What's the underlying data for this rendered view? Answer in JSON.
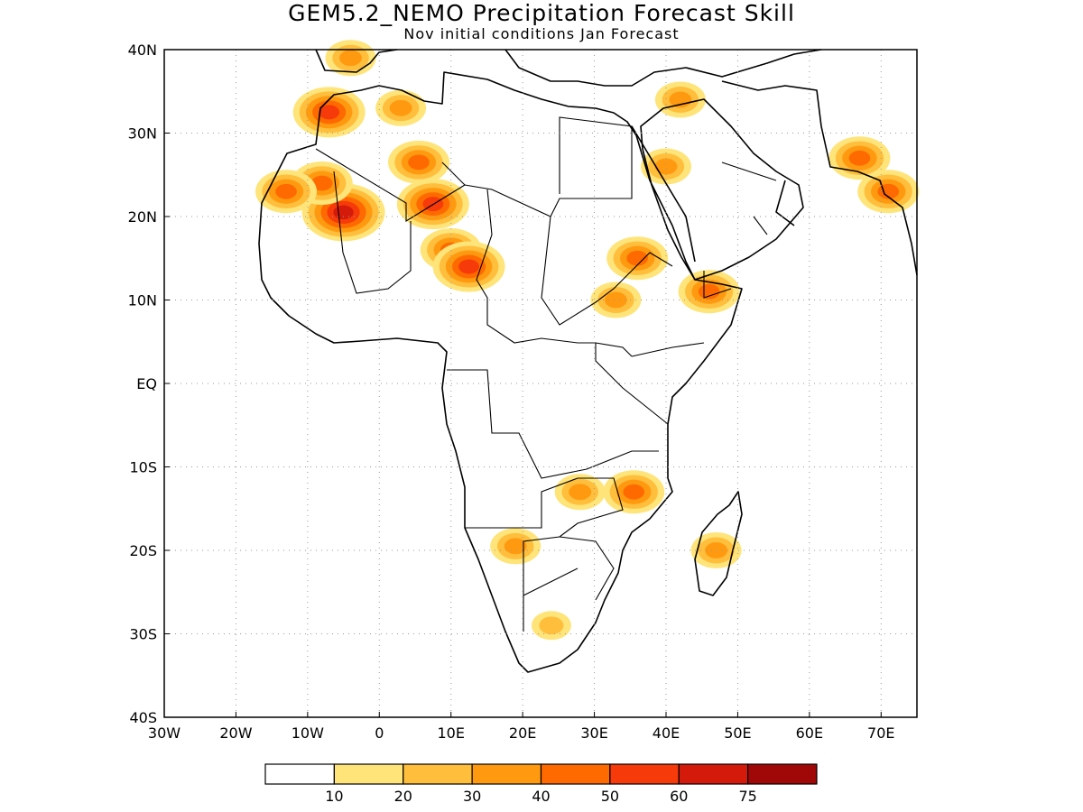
{
  "figure": {
    "title": "GEM5.2_NEMO Precipitation Forecast Skill",
    "subtitle": "Nov initial conditions  Jan Forecast"
  },
  "map": {
    "lon_range": [
      -30,
      75
    ],
    "lat_range": [
      -40,
      40
    ],
    "lat_ticks": [
      {
        "value": 40,
        "label": "40N"
      },
      {
        "value": 30,
        "label": "30N"
      },
      {
        "value": 20,
        "label": "20N"
      },
      {
        "value": 10,
        "label": "10N"
      },
      {
        "value": 0,
        "label": "EQ"
      },
      {
        "value": -10,
        "label": "10S"
      },
      {
        "value": -20,
        "label": "20S"
      },
      {
        "value": -30,
        "label": "30S"
      },
      {
        "value": -40,
        "label": "40S"
      }
    ],
    "lon_ticks": [
      {
        "value": -30,
        "label": "30W"
      },
      {
        "value": -20,
        "label": "20W"
      },
      {
        "value": -10,
        "label": "10W"
      },
      {
        "value": 0,
        "label": "0"
      },
      {
        "value": 10,
        "label": "10E"
      },
      {
        "value": 20,
        "label": "20E"
      },
      {
        "value": 30,
        "label": "30E"
      },
      {
        "value": 40,
        "label": "40E"
      },
      {
        "value": 50,
        "label": "50E"
      },
      {
        "value": 60,
        "label": "60E"
      },
      {
        "value": 70,
        "label": "70E"
      }
    ],
    "grid": true
  },
  "colorbar": {
    "labels": [
      "10",
      "20",
      "30",
      "40",
      "50",
      "60",
      "75"
    ],
    "colors": [
      "#ffffff",
      "#ffe47a",
      "#ffbe3c",
      "#ff9a10",
      "#ff6a00",
      "#f63a0a",
      "#d41a0a",
      "#a00808"
    ]
  },
  "skill_regions": [
    {
      "lon": -5,
      "lat": 20.5,
      "level": 6
    },
    {
      "lon": 7.5,
      "lat": 21.5,
      "level": 5
    },
    {
      "lon": 5.5,
      "lat": 26.5,
      "level": 4
    },
    {
      "lon": -8,
      "lat": 24,
      "level": 4
    },
    {
      "lon": -13,
      "lat": 23,
      "level": 4
    },
    {
      "lon": -7,
      "lat": 32.5,
      "level": 5
    },
    {
      "lon": 3,
      "lat": 33,
      "level": 3
    },
    {
      "lon": 10,
      "lat": 16,
      "level": 4
    },
    {
      "lon": 12.5,
      "lat": 14,
      "level": 5
    },
    {
      "lon": 40,
      "lat": 26,
      "level": 3
    },
    {
      "lon": 42,
      "lat": 34,
      "level": 3
    },
    {
      "lon": 46,
      "lat": 11,
      "level": 4
    },
    {
      "lon": 67,
      "lat": 27,
      "level": 4
    },
    {
      "lon": 71,
      "lat": 23,
      "level": 4
    },
    {
      "lon": 36,
      "lat": 15,
      "level": 4
    },
    {
      "lon": 33,
      "lat": 10,
      "level": 3
    },
    {
      "lon": 35.5,
      "lat": -13,
      "level": 4
    },
    {
      "lon": 28,
      "lat": -13,
      "level": 3
    },
    {
      "lon": 47,
      "lat": -20,
      "level": 3
    },
    {
      "lon": 24,
      "lat": -29,
      "level": 2
    },
    {
      "lon": 19,
      "lat": -19.5,
      "level": 3
    },
    {
      "lon": -4,
      "lat": 39,
      "level": 3
    }
  ]
}
